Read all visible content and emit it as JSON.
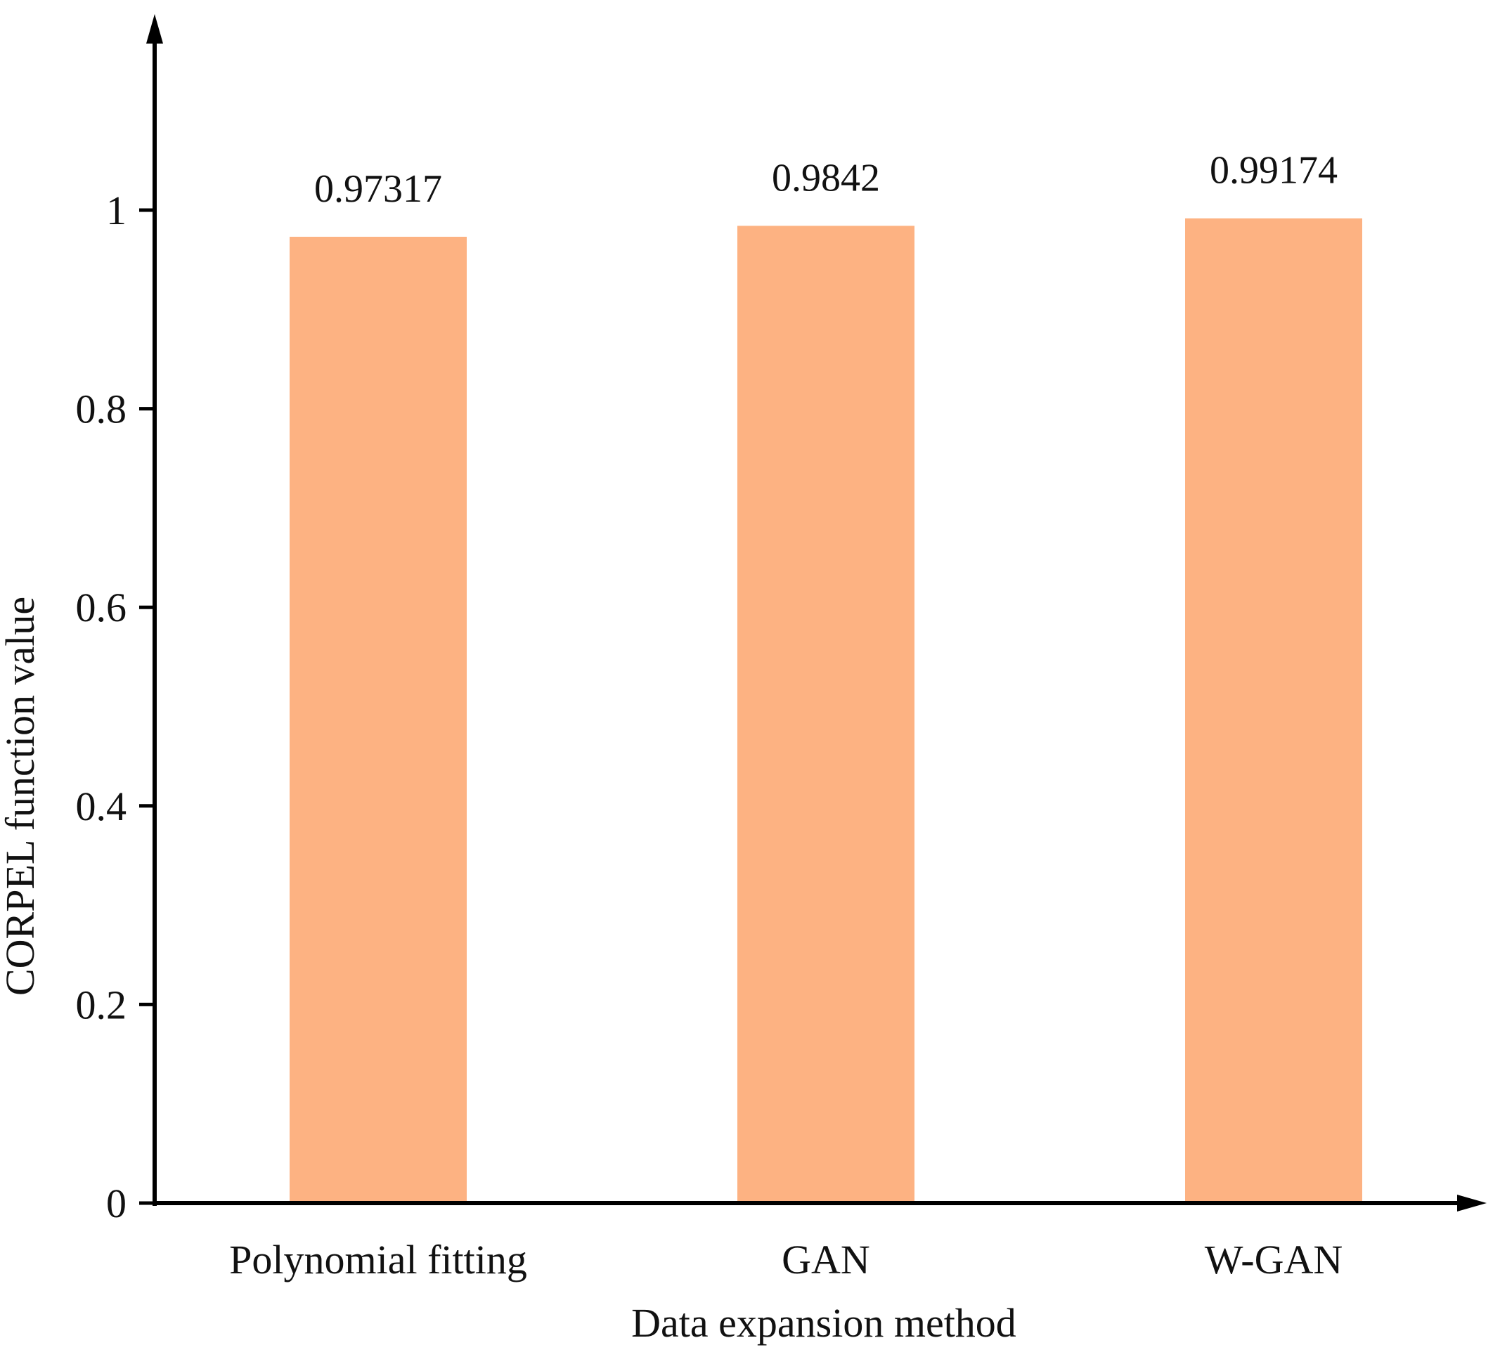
{
  "chart_data": {
    "type": "bar",
    "title": "",
    "categories": [
      "Polynomial fitting",
      "GAN",
      "W-GAN"
    ],
    "values": [
      0.97317,
      0.9842,
      0.99174
    ],
    "value_labels": [
      "0.97317",
      "0.9842",
      "0.99174"
    ],
    "xlabel": "Data expansion method",
    "ylabel": "CORPEL function value",
    "ylim": [
      0,
      1.2
    ],
    "yticks": [
      0,
      0.2,
      0.4,
      0.6,
      0.8,
      1
    ],
    "ytick_labels": [
      "0",
      "0.2",
      "0.4",
      "0.6",
      "0.8",
      "1"
    ],
    "bar_color": "#FDB282",
    "axis_color": "#000000",
    "grid": false,
    "legend": "none"
  }
}
